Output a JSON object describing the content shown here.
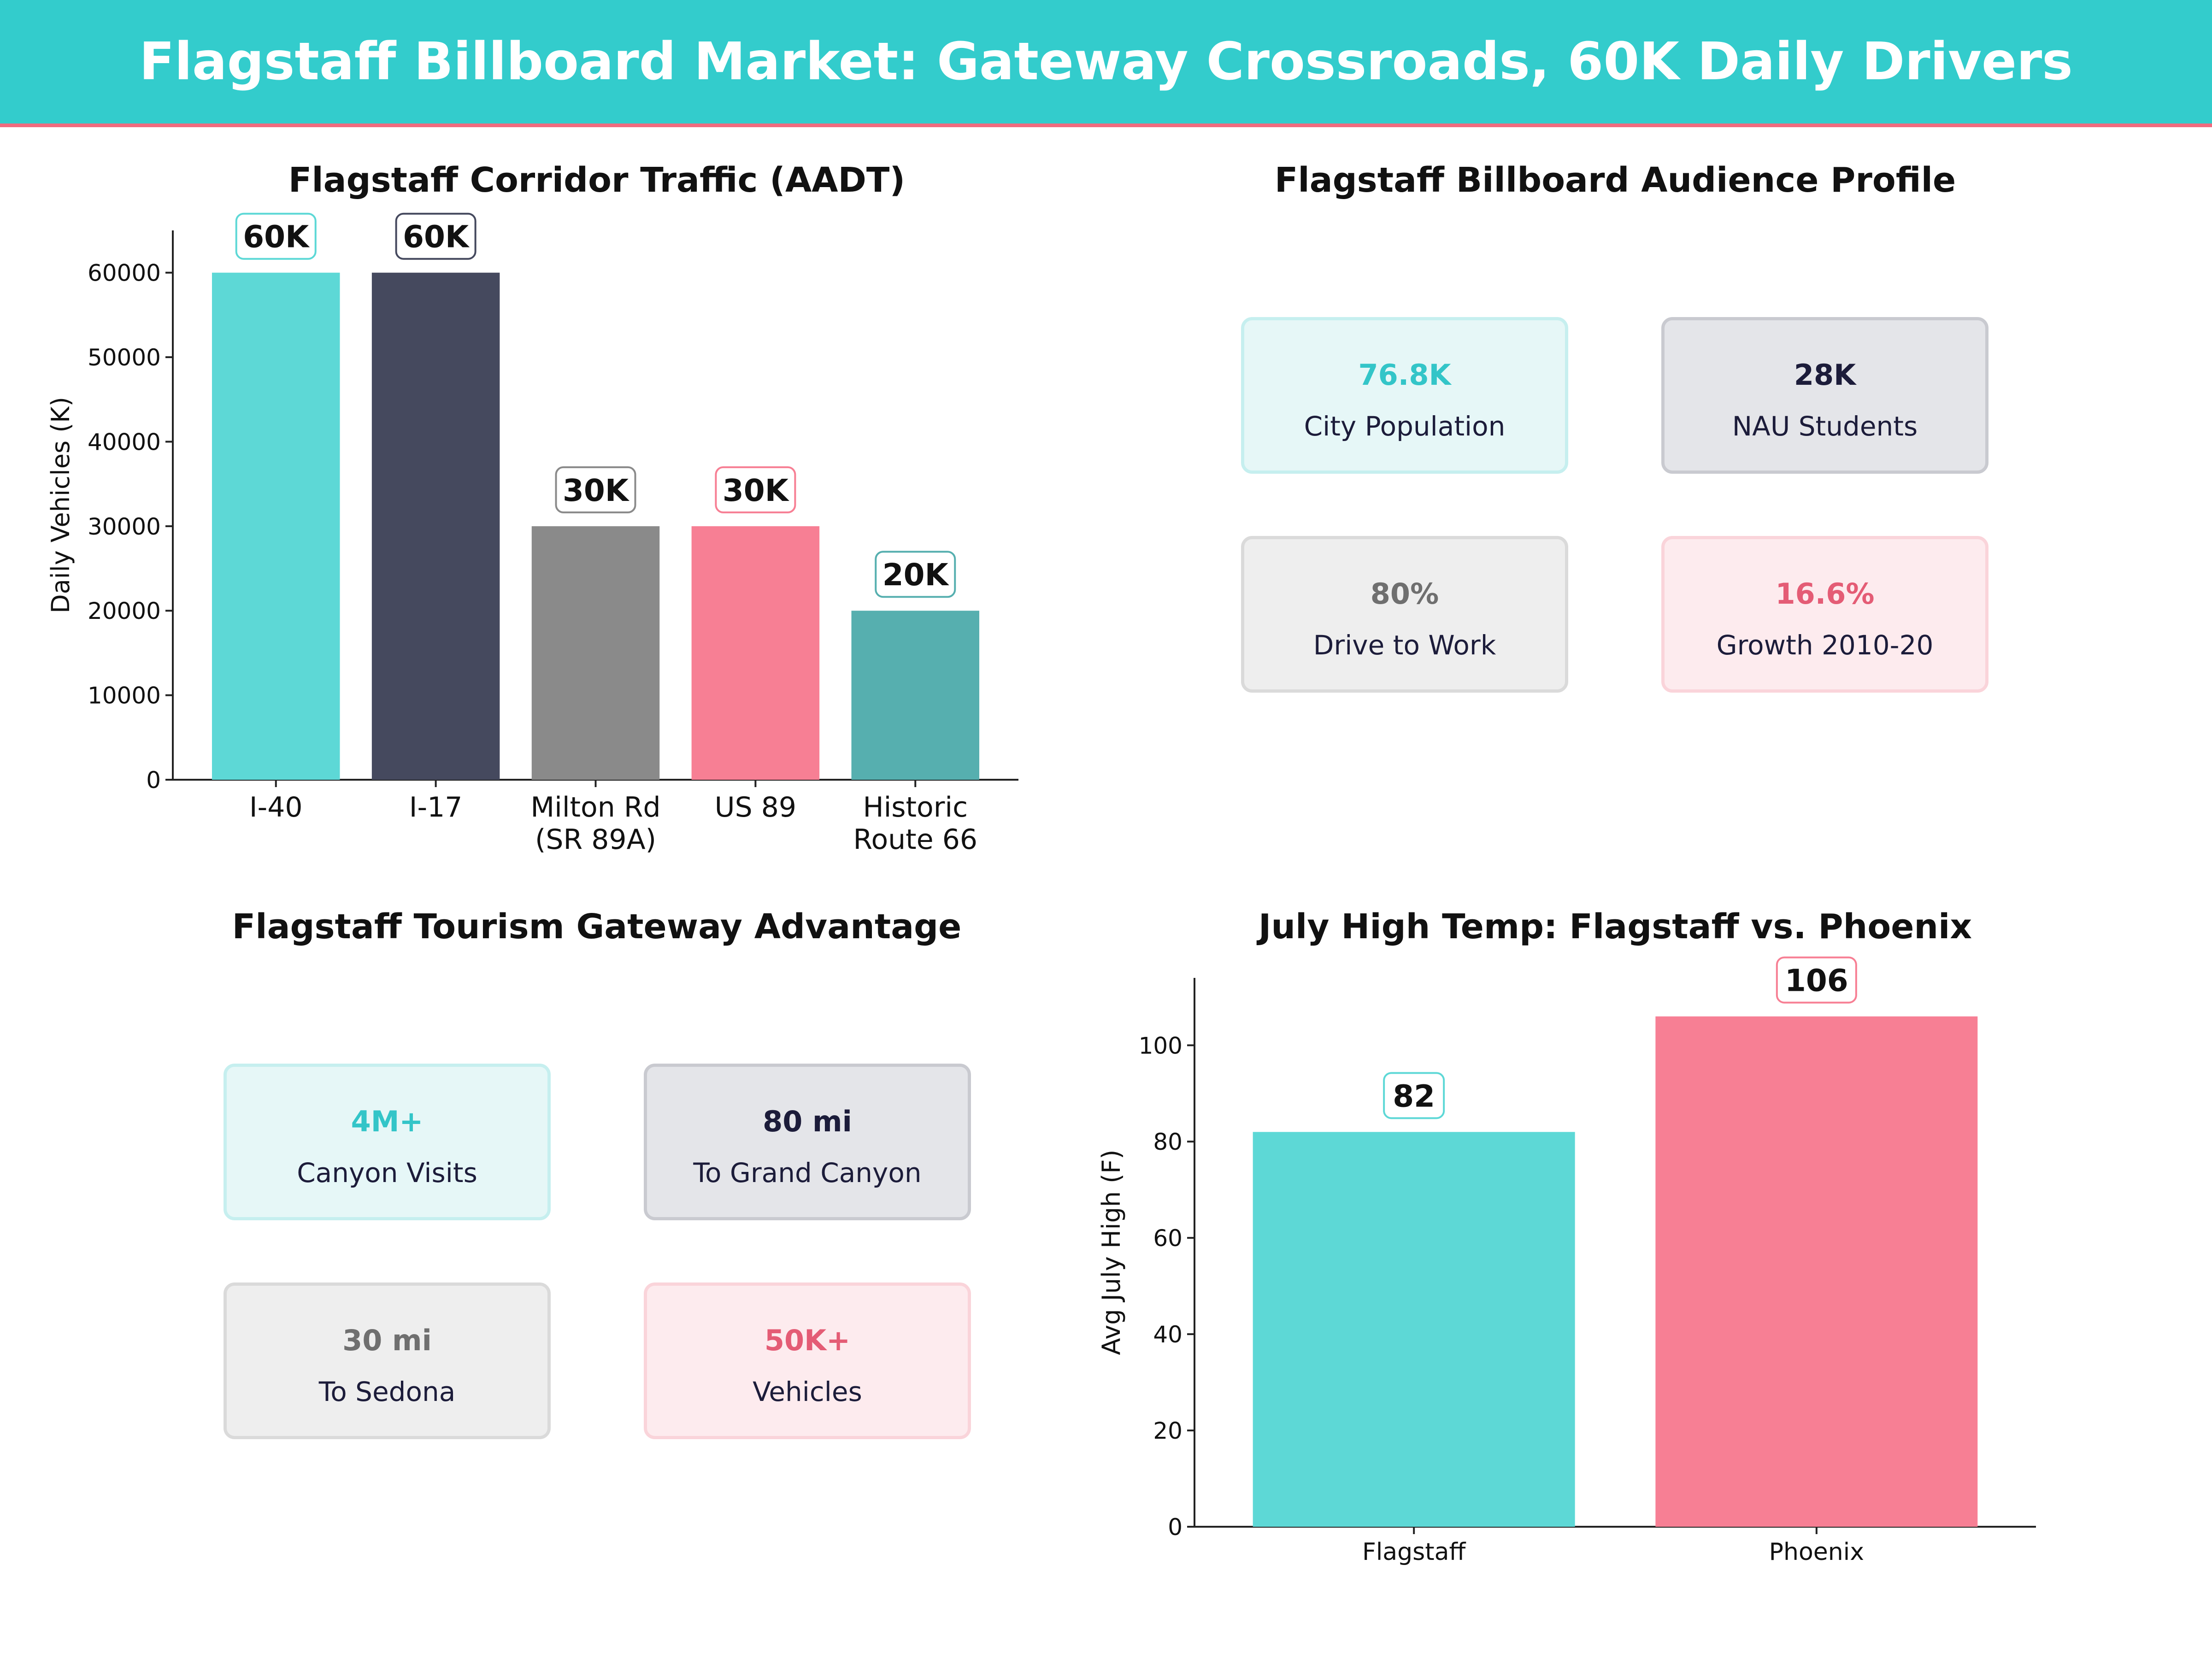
{
  "header": {
    "title": "Flagstaff Billboard Market: Gateway Crossroads, 60K Daily Drivers"
  },
  "colors": {
    "teal": "#5dd8d6",
    "navy": "#45495e",
    "gray": "#8a8a8a",
    "pink": "#f77f94",
    "dark_teal": "#56afaf"
  },
  "audience": {
    "title": "Flagstaff Billboard Audience Profile",
    "cards": [
      {
        "value": "76.8K",
        "label": "City Population",
        "style": "teal"
      },
      {
        "value": "28K",
        "label": "NAU Students",
        "style": "navy"
      },
      {
        "value": "80%",
        "label": "Drive to Work",
        "style": "gray"
      },
      {
        "value": "16.6%",
        "label": "Growth 2010-20",
        "style": "pink"
      }
    ]
  },
  "tourism": {
    "title": "Flagstaff Tourism Gateway Advantage",
    "cards": [
      {
        "value": "4M+",
        "label": "Canyon Visits",
        "style": "teal"
      },
      {
        "value": "80 mi",
        "label": "To Grand Canyon",
        "style": "navy"
      },
      {
        "value": "30 mi",
        "label": "To Sedona",
        "style": "gray"
      },
      {
        "value": "50K+",
        "label": "Vehicles",
        "style": "pink"
      }
    ]
  },
  "chart_data": [
    {
      "type": "bar",
      "title": "Flagstaff Corridor Traffic (AADT)",
      "xlabel": "",
      "ylabel": "Daily Vehicles (K)",
      "categories": [
        [
          "I-40"
        ],
        [
          "I-17"
        ],
        [
          "Milton Rd",
          "(SR 89A)"
        ],
        [
          "US 89"
        ],
        [
          "Historic",
          "Route 66"
        ]
      ],
      "values": [
        60000,
        60000,
        30000,
        30000,
        20000
      ],
      "data_labels": [
        "60K",
        "60K",
        "30K",
        "30K",
        "20K"
      ],
      "colors": [
        "#5dd8d6",
        "#45495e",
        "#8a8a8a",
        "#f77f94",
        "#56afaf"
      ],
      "ylim": [
        0,
        65000
      ],
      "yticks": [
        0,
        10000,
        20000,
        30000,
        40000,
        50000,
        60000
      ],
      "grid": false
    },
    {
      "type": "bar",
      "title": "July High Temp: Flagstaff vs. Phoenix",
      "xlabel": "",
      "ylabel": "Avg July High (F)",
      "categories": [
        [
          "Flagstaff"
        ],
        [
          "Phoenix"
        ]
      ],
      "values": [
        82,
        106
      ],
      "data_labels": [
        "82",
        "106"
      ],
      "colors": [
        "#5dd8d6",
        "#f77f94"
      ],
      "ylim": [
        0,
        114
      ],
      "yticks": [
        0,
        20,
        40,
        60,
        80,
        100
      ],
      "grid": false
    }
  ]
}
